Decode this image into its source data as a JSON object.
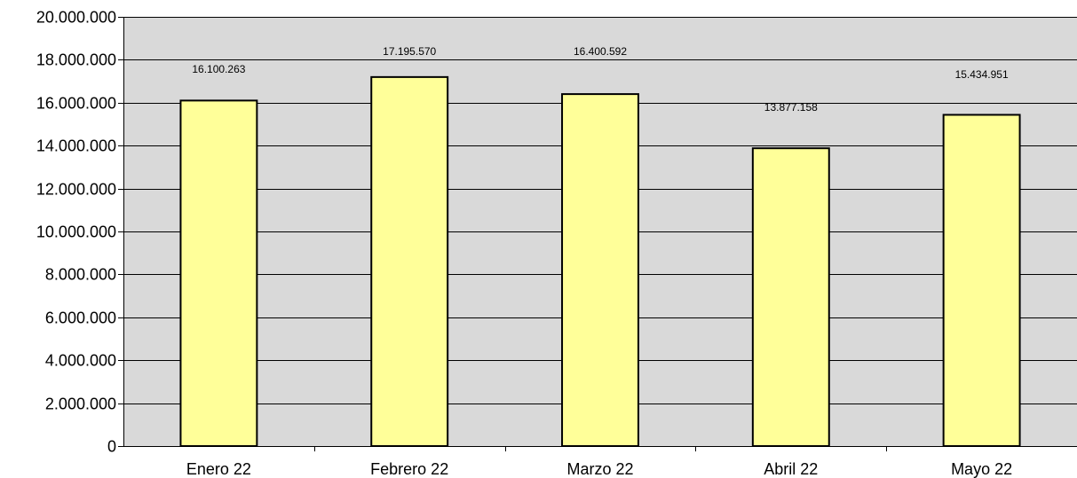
{
  "chart_data": {
    "type": "bar",
    "categories": [
      "Enero 22",
      "Febrero 22",
      "Marzo 22",
      "Abril 22",
      "Mayo 22"
    ],
    "values": [
      16100263,
      17195570,
      16400592,
      13877158,
      15434951
    ],
    "data_labels": [
      "16.100.263",
      "17.195.570",
      "16.400.592",
      "13.877.158",
      "15.434.951"
    ],
    "y_ticks": [
      0,
      2000000,
      4000000,
      6000000,
      8000000,
      10000000,
      12000000,
      14000000,
      16000000,
      18000000,
      20000000
    ],
    "y_tick_labels": [
      "0",
      "2.000.000",
      "4.000.000",
      "6.000.000",
      "8.000.000",
      "10.000.000",
      "12.000.000",
      "14.000.000",
      "16.000.000",
      "18.000.000",
      "20.000.000"
    ],
    "ylim": [
      0,
      20000000
    ],
    "grid": true,
    "legend": "none",
    "colors": {
      "plot_background": "#d9d9d9",
      "bar_fill": "#ffff99",
      "bar_stroke": "#000000",
      "grid": "#000000"
    }
  }
}
